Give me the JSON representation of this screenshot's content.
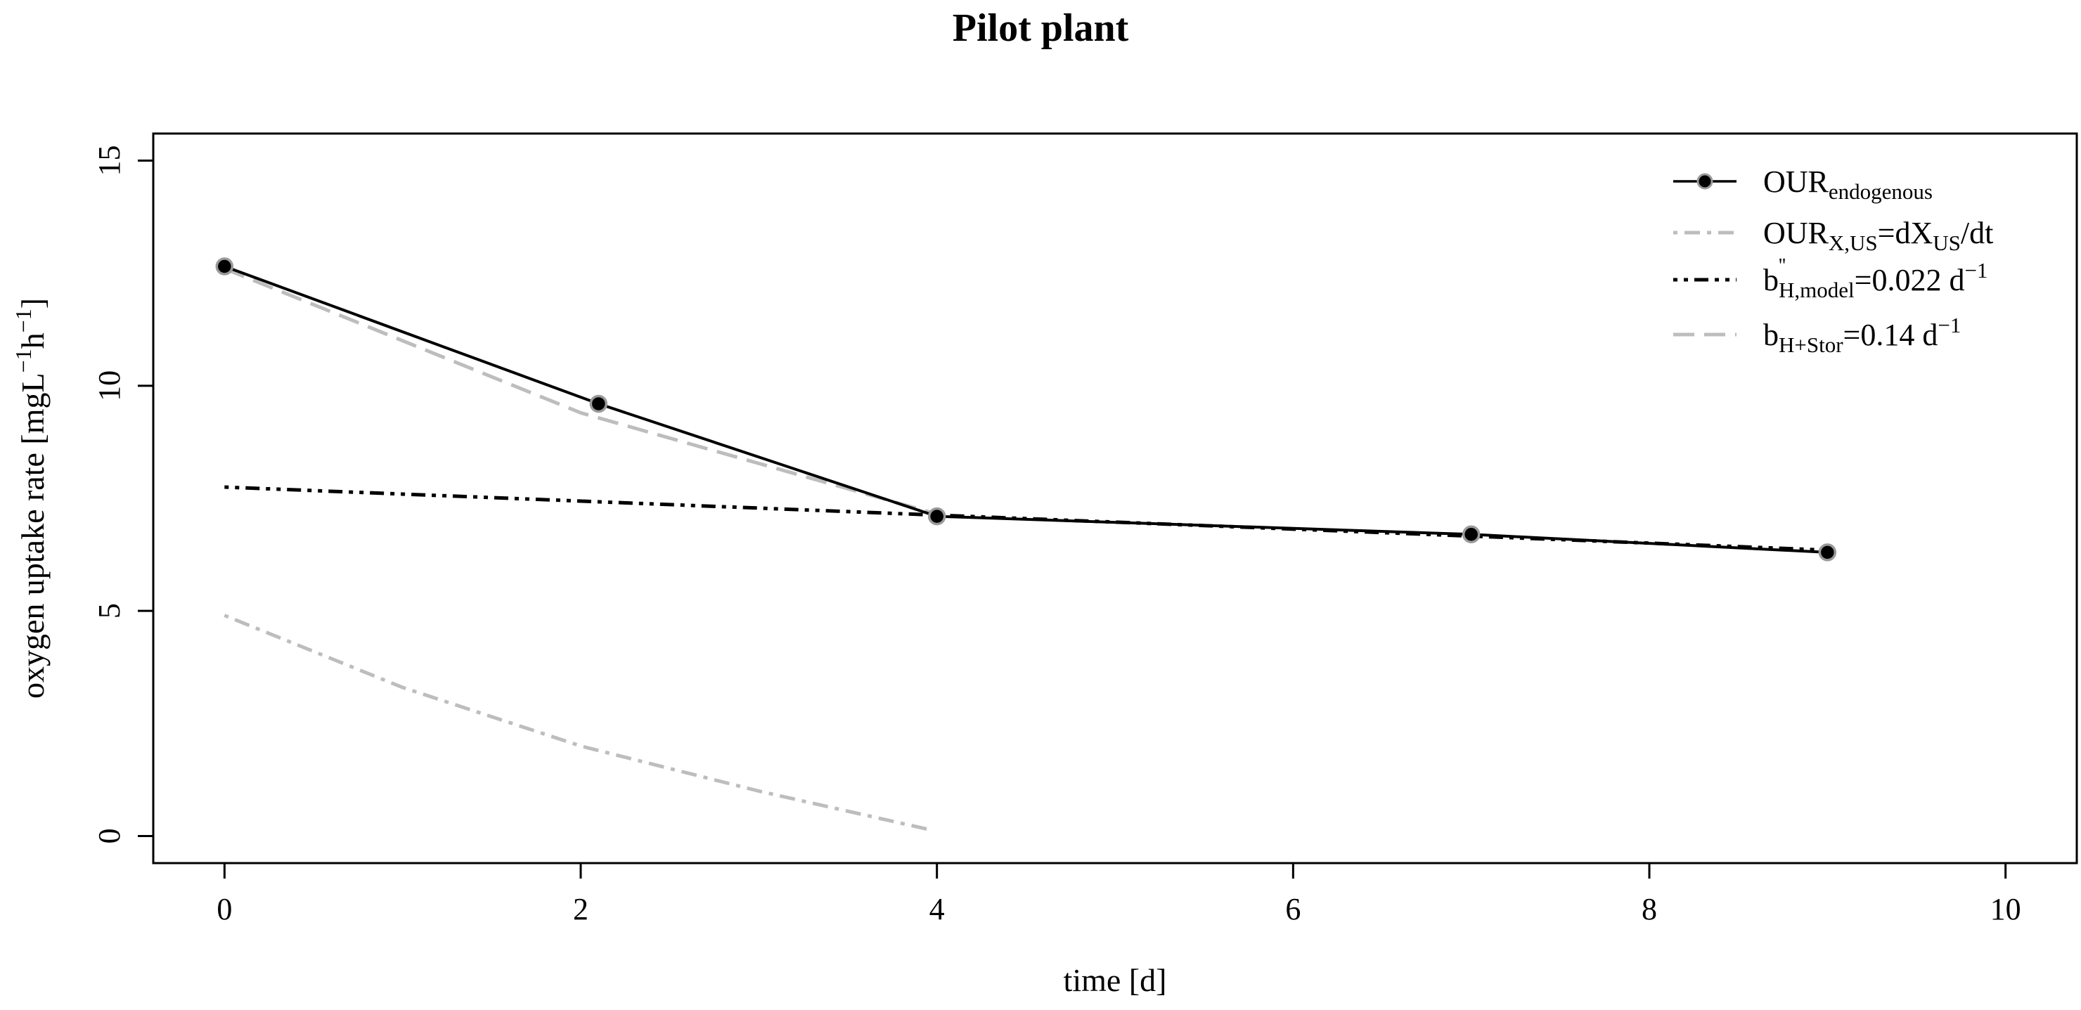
{
  "chart_data": {
    "type": "line",
    "title": "Pilot plant",
    "xlabel": "time [d]",
    "ylabel": {
      "prefix": "oxygen uptake rate [mgL",
      "sup1": "−1",
      "mid": "h",
      "sup2": "−1",
      "suffix": "]"
    },
    "xlim": [
      -0.4,
      10.4
    ],
    "ylim": [
      -0.6,
      15.6
    ],
    "x_ticks": [
      0,
      2,
      4,
      6,
      8,
      10
    ],
    "x_tick_labels": [
      "0",
      "2",
      "4",
      "6",
      "8",
      "10"
    ],
    "y_ticks": [
      0,
      5,
      10,
      15
    ],
    "y_tick_labels": [
      "0",
      "5",
      "10",
      "15"
    ],
    "grid": false,
    "legend_position": "top-right",
    "series": [
      {
        "key": "our_endogenous",
        "name": "OUR endogenous",
        "legend": {
          "base": "OUR",
          "sub": "endogenous",
          "rest": ""
        },
        "style": "solid-with-markers",
        "color": "#000000",
        "marker_fill": "#000000",
        "marker_stroke": "#9a9a9a",
        "x": [
          0,
          2.1,
          4,
          7,
          9
        ],
        "y": [
          12.65,
          9.6,
          7.1,
          6.7,
          6.3
        ]
      },
      {
        "key": "our_xus",
        "name": "OUR X,US = dX US / dt",
        "legend": {
          "base": "OUR",
          "sub": "X,US",
          "mid": "=dX",
          "sub2": "US",
          "rest": "/dt"
        },
        "style": "dash-dot",
        "color": "#bdbdbd",
        "x": [
          0,
          1,
          2,
          3,
          3.95
        ],
        "y": [
          4.9,
          3.3,
          2.0,
          1.0,
          0.15
        ]
      },
      {
        "key": "b_h_model",
        "name": "b H,model = 0.022 d-1",
        "legend": {
          "base": "b",
          "sup": "''",
          "sub": "H,model",
          "rest": "=0.022 d",
          "rest_sup": "−1"
        },
        "style": "dot-dash",
        "color": "#000000",
        "x": [
          0,
          9
        ],
        "y": [
          7.75,
          6.35
        ]
      },
      {
        "key": "b_h_stor",
        "name": "b H+Stor = 0.14 d-1",
        "legend": {
          "base": "b",
          "sub": "H+Stor",
          "rest": "=0.14 d",
          "rest_sup": "−1"
        },
        "style": "long-dash",
        "color": "#bdbdbd",
        "x": [
          0,
          2,
          4
        ],
        "y": [
          12.6,
          9.4,
          7.15
        ]
      }
    ]
  }
}
